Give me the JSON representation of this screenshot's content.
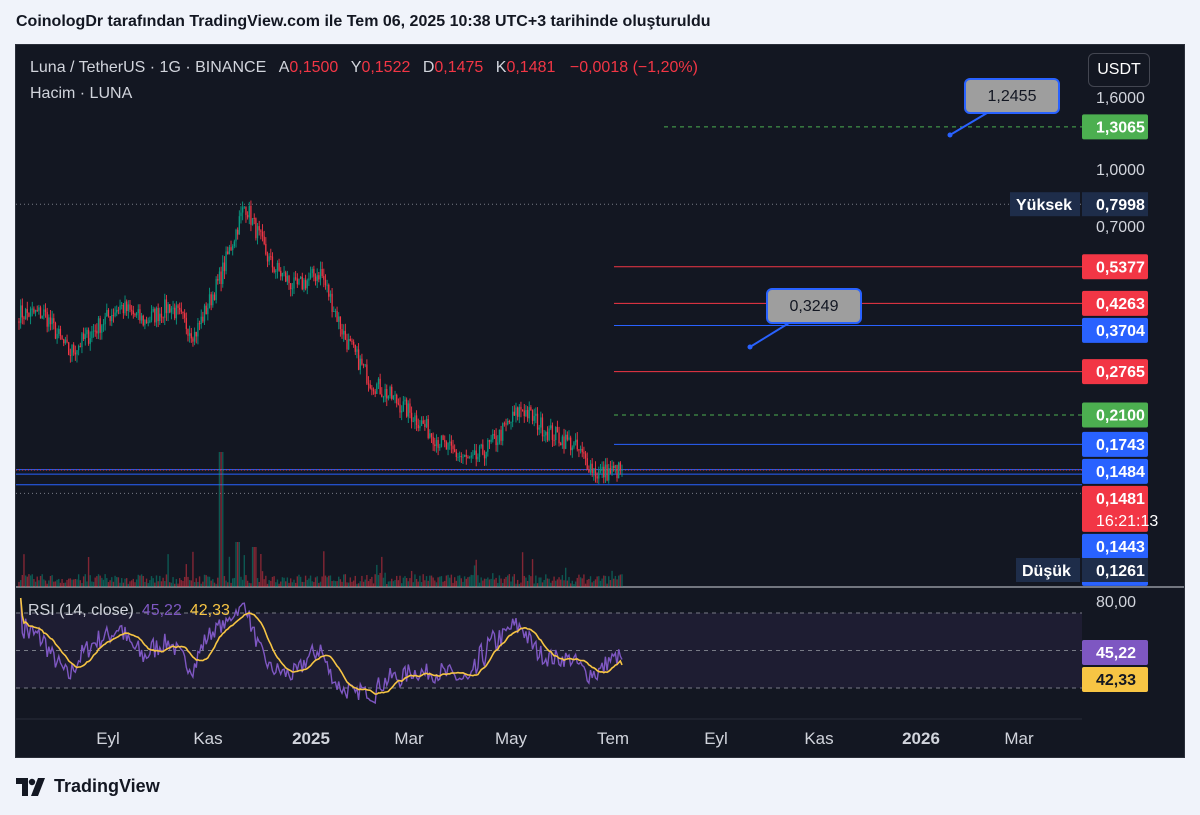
{
  "header": {
    "caption": "CoinologDr tarafından TradingView.com ile Tem 06, 2025 10:38 UTC+3 tarihinde oluşturuldu"
  },
  "legend": {
    "symbol": "Luna / TetherUS · 1G · BINANCE",
    "open_label": "A",
    "open": "0,1500",
    "high_label": "Y",
    "high": "0,1522",
    "low_label": "D",
    "low": "0,1475",
    "close_label": "K",
    "close": "0,1481",
    "change": "−0,0018 (−1,20%)",
    "volume": "Hacim · LUNA"
  },
  "currency": "USDT",
  "rsi_legend": {
    "name": "RSI (14, close)",
    "rsi": "45,22",
    "ma": "42,33"
  },
  "footer": {
    "brand": "TradingView"
  },
  "colors": {
    "background": "#131722",
    "up": "#089981",
    "down": "#f23645",
    "red_level": "#f23645",
    "blue_level": "#2962ff",
    "green_level": "#4caf50",
    "rsi": "#7e57c2",
    "rsi_ma": "#f7c544",
    "callout": "#9e9e9e"
  },
  "chart_data": {
    "type": "candlestick",
    "symbol": "LUNA/USDT",
    "timeframe": "1D",
    "x_tick_labels": [
      "Eyl",
      "Kas",
      "2025",
      "Mar",
      "May",
      "Tem",
      "Eyl",
      "Kas",
      "2026",
      "Mar"
    ],
    "y_scale": "log",
    "y_tick_labels": [
      "1,6000",
      "1,0000",
      "0,7000"
    ],
    "close_series_anchors": [
      {
        "x": "Tem 2024",
        "y": 0.4
      },
      {
        "x": "Ağu 2024",
        "y": 0.4
      },
      {
        "x": "Ağu 2024",
        "y": 0.31
      },
      {
        "x": "Eyl 2024",
        "y": 0.36
      },
      {
        "x": "Eyl 2024",
        "y": 0.42
      },
      {
        "x": "Eki 2024",
        "y": 0.38
      },
      {
        "x": "Eki 2024",
        "y": 0.42
      },
      {
        "x": "Kas 2024",
        "y": 0.35
      },
      {
        "x": "Kas 2024",
        "y": 0.5
      },
      {
        "x": "Ara 2024",
        "y": 0.8
      },
      {
        "x": "Ara 2024",
        "y": 0.55
      },
      {
        "x": "Oca 2025",
        "y": 0.47
      },
      {
        "x": "Oca 2025",
        "y": 0.52
      },
      {
        "x": "Şub 2025",
        "y": 0.34
      },
      {
        "x": "Şub 2025",
        "y": 0.26
      },
      {
        "x": "Mar 2025",
        "y": 0.23
      },
      {
        "x": "Mar 2025",
        "y": 0.2
      },
      {
        "x": "Nis 2025",
        "y": 0.17
      },
      {
        "x": "Nis 2025",
        "y": 0.155
      },
      {
        "x": "Nis 2025",
        "y": 0.18
      },
      {
        "x": "May 2025",
        "y": 0.22
      },
      {
        "x": "May 2025",
        "y": 0.19
      },
      {
        "x": "Haz 2025",
        "y": 0.175
      },
      {
        "x": "Haz 2025",
        "y": 0.145
      },
      {
        "x": "Tem 2025",
        "y": 0.1481
      }
    ],
    "period_high": {
      "label": "Yüksek",
      "value": "0,7998"
    },
    "period_low": {
      "label": "Düşük",
      "value": "0,1261"
    },
    "last_price": {
      "value": "0,1481",
      "countdown": "16:21:13"
    },
    "levels": [
      {
        "value": "1,3065",
        "style": "green-dashed"
      },
      {
        "value": "0,5377",
        "style": "red"
      },
      {
        "value": "0,4263",
        "style": "red"
      },
      {
        "value": "0,3704",
        "style": "blue"
      },
      {
        "value": "0,2765",
        "style": "red"
      },
      {
        "value": "0,2100",
        "style": "green-dashed"
      },
      {
        "value": "0,1743",
        "style": "blue"
      },
      {
        "value": "0,1484",
        "style": "blue"
      },
      {
        "value": "0,1443",
        "style": "blue"
      },
      {
        "value": "0,1349",
        "style": "blue"
      }
    ],
    "callouts": [
      {
        "text": "1,2455"
      },
      {
        "text": "0,3249"
      }
    ],
    "rsi": {
      "period": 14,
      "current": 45.22,
      "ma": 42.33,
      "y_tick_labels": [
        "80,00"
      ],
      "band_upper": 70,
      "band_mid": 50,
      "band_lower": 30
    },
    "volume_series": "LUNA"
  }
}
